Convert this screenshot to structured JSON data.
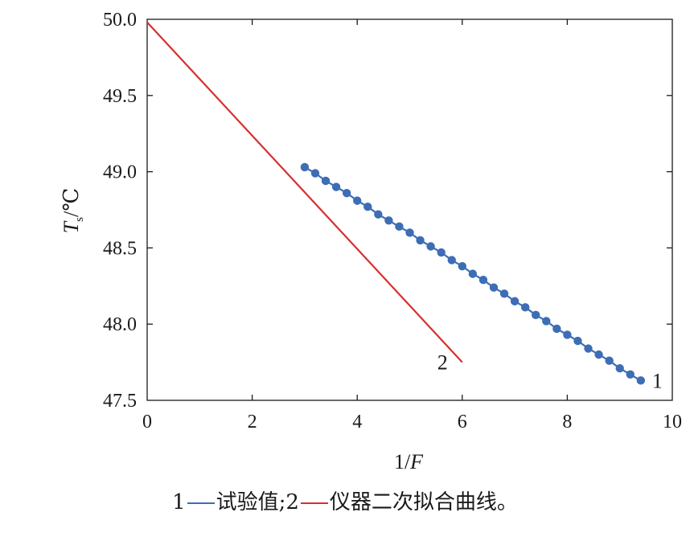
{
  "chart_data": {
    "type": "line",
    "xlabel": "1/F",
    "ylabel": "T_s/℃",
    "xlim": [
      0,
      10
    ],
    "ylim": [
      47.5,
      50.0
    ],
    "x_ticks": [
      "0",
      "2",
      "4",
      "6",
      "8",
      "10"
    ],
    "y_ticks": [
      "47.5",
      "48.0",
      "48.5",
      "49.0",
      "49.5",
      "50.0"
    ],
    "grid": false,
    "series": [
      {
        "name": "1",
        "label": "1",
        "color": "#3d6db5",
        "style": "line-markers",
        "x": [
          3.0,
          3.2,
          3.4,
          3.6,
          3.8,
          4.0,
          4.2,
          4.4,
          4.6,
          4.8,
          5.0,
          5.2,
          5.4,
          5.6,
          5.8,
          6.0,
          6.2,
          6.4,
          6.6,
          6.8,
          7.0,
          7.2,
          7.4,
          7.6,
          7.8,
          8.0,
          8.2,
          8.4,
          8.6,
          8.8,
          9.0,
          9.2,
          9.4
        ],
        "y": [
          49.03,
          48.99,
          48.94,
          48.9,
          48.86,
          48.81,
          48.77,
          48.72,
          48.68,
          48.64,
          48.6,
          48.55,
          48.51,
          48.47,
          48.42,
          48.38,
          48.33,
          48.29,
          48.24,
          48.2,
          48.15,
          48.11,
          48.06,
          48.02,
          47.97,
          47.93,
          47.89,
          47.84,
          47.8,
          47.76,
          47.71,
          47.67,
          47.63
        ]
      },
      {
        "name": "2",
        "label": "2",
        "color": "#d63030",
        "style": "line",
        "x": [
          0.0,
          6.0
        ],
        "y": [
          49.98,
          47.75
        ]
      }
    ]
  },
  "caption": {
    "part1_num": "1",
    "part1_text": "试验值;",
    "part2_num": "2",
    "part2_text": "仪器二次拟合曲线。",
    "color1": "#3d6db5",
    "color2": "#d63030"
  }
}
